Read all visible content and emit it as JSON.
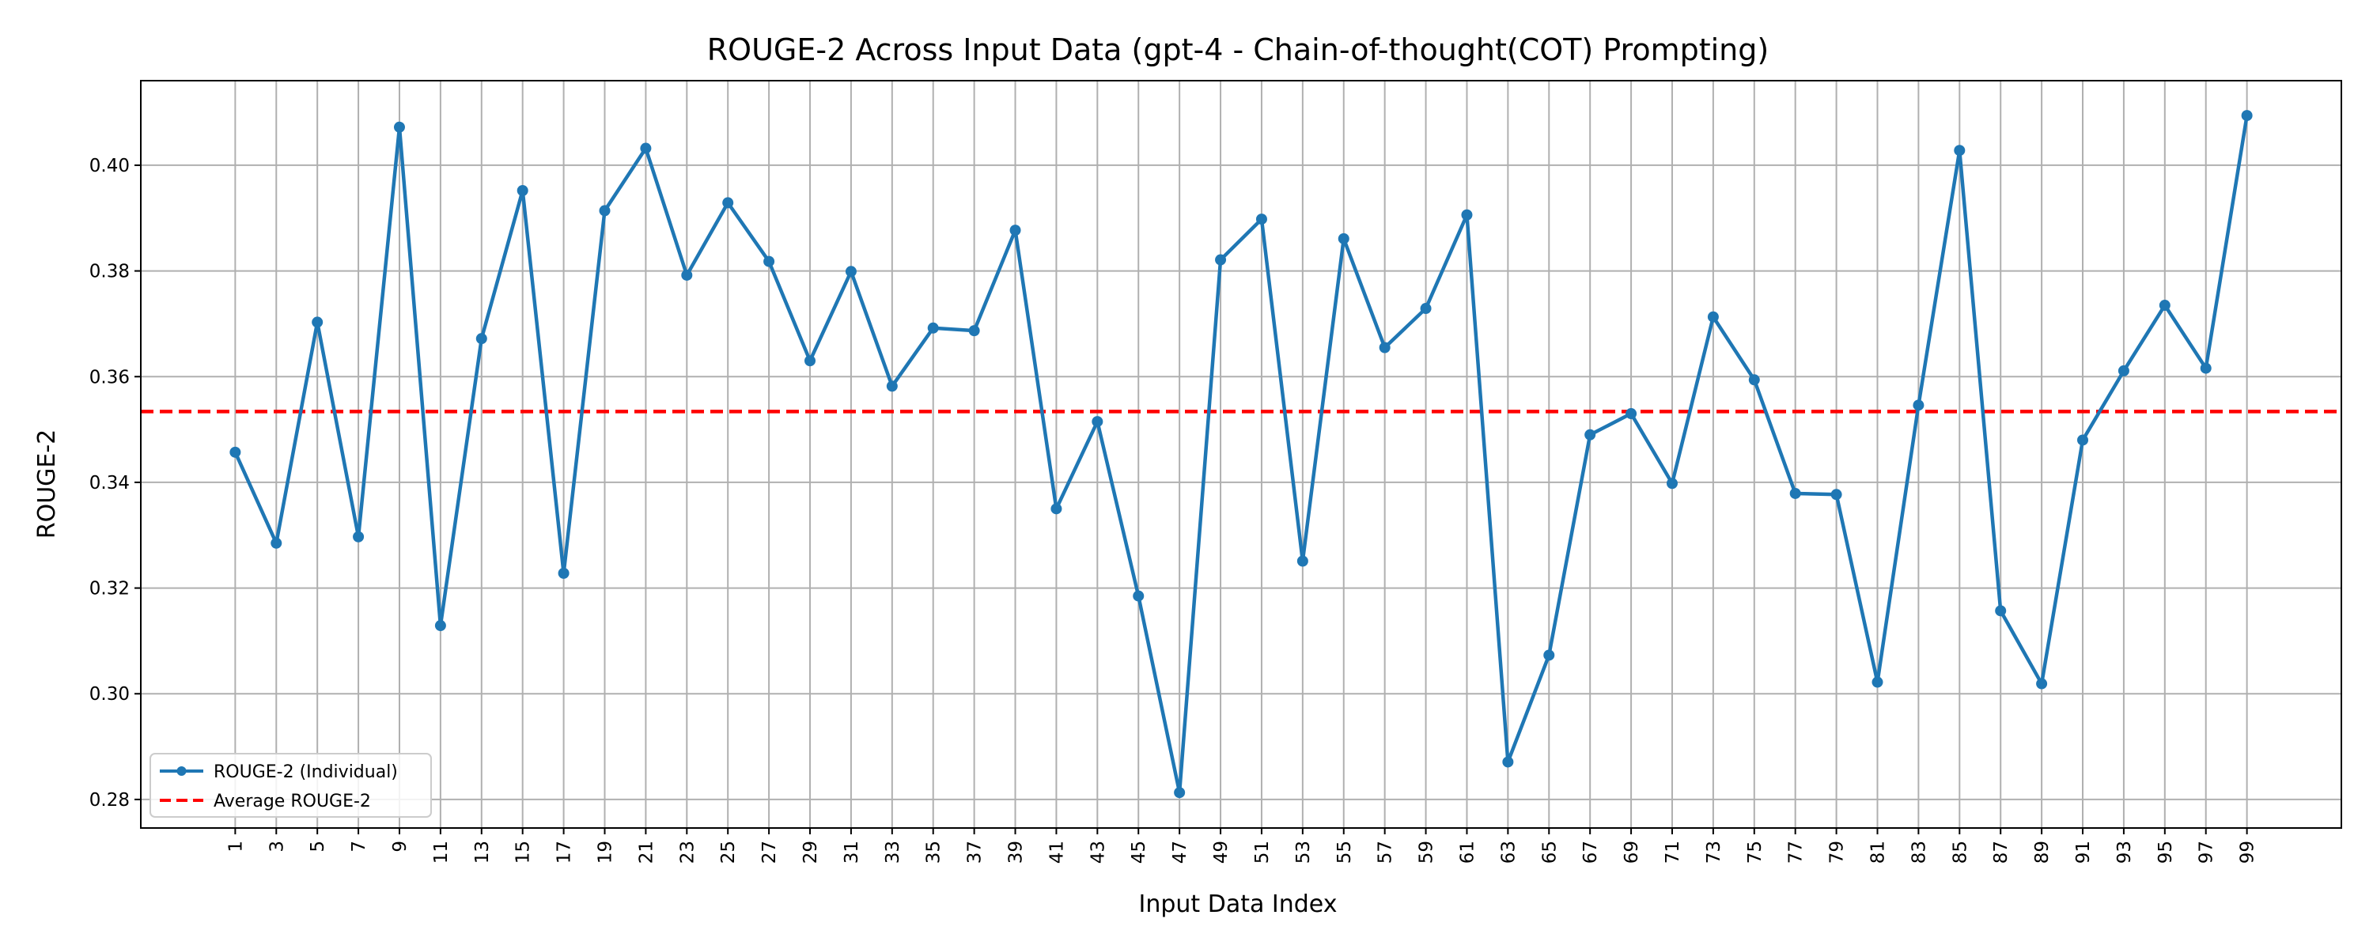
{
  "chart_data": {
    "type": "line",
    "title": "ROUGE-2 Across Input Data (gpt-4 - Chain-of-thought(COT) Prompting)",
    "xlabel": "Input Data Index",
    "ylabel": "ROUGE-2",
    "x": [
      1,
      3,
      5,
      7,
      9,
      11,
      13,
      15,
      17,
      19,
      21,
      23,
      25,
      27,
      29,
      31,
      33,
      35,
      37,
      39,
      41,
      43,
      45,
      47,
      49,
      51,
      53,
      55,
      57,
      59,
      61,
      63,
      65,
      67,
      69,
      71,
      73,
      75,
      77,
      79,
      81,
      83,
      85,
      87,
      89,
      91,
      93,
      95,
      97,
      99
    ],
    "xticks": [
      1,
      3,
      5,
      7,
      9,
      11,
      13,
      15,
      17,
      19,
      21,
      23,
      25,
      27,
      29,
      31,
      33,
      35,
      37,
      39,
      41,
      43,
      45,
      47,
      49,
      51,
      53,
      55,
      57,
      59,
      61,
      63,
      65,
      67,
      69,
      71,
      73,
      75,
      77,
      79,
      81,
      83,
      85,
      87,
      89,
      91,
      93,
      95,
      97,
      99
    ],
    "yticks": [
      0.28,
      0.3,
      0.32,
      0.34,
      0.36,
      0.38,
      0.4
    ],
    "ytick_labels": [
      "0.28",
      "0.30",
      "0.32",
      "0.34",
      "0.36",
      "0.38",
      "0.40"
    ],
    "xlim": [
      -3.6,
      103.6
    ],
    "ylim": [
      0.2746,
      0.416
    ],
    "grid": true,
    "legend_position": "lower-left",
    "series": [
      {
        "name": "ROUGE-2 (Individual)",
        "color": "#1f77b4",
        "style": "solid-line-with-dots",
        "values": [
          0.3457,
          0.3285,
          0.3703,
          0.3297,
          0.4072,
          0.3129,
          0.3672,
          0.3952,
          0.3228,
          0.3914,
          0.4032,
          0.3792,
          0.3929,
          0.3818,
          0.363,
          0.3799,
          0.3582,
          0.3692,
          0.3687,
          0.3877,
          0.335,
          0.3515,
          0.3185,
          0.2813,
          0.3821,
          0.3898,
          0.3251,
          0.3861,
          0.3655,
          0.3729,
          0.3906,
          0.2871,
          0.3073,
          0.349,
          0.353,
          0.3398,
          0.3713,
          0.3594,
          0.3379,
          0.3377,
          0.3022,
          0.3546,
          0.4028,
          0.3157,
          0.3019,
          0.348,
          0.3611,
          0.3735,
          0.3616,
          0.4094
        ]
      },
      {
        "name": "Average ROUGE-2",
        "color": "#ff0000",
        "style": "dashed",
        "value": 0.3534
      }
    ]
  }
}
